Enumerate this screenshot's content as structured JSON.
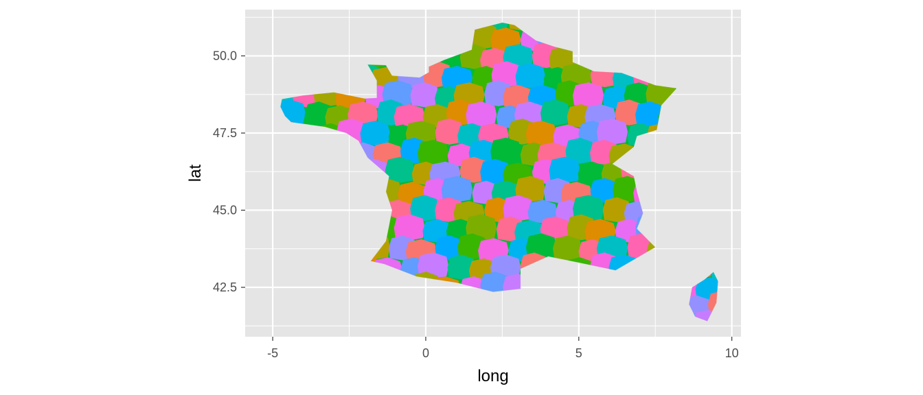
{
  "chart_data": {
    "type": "map",
    "xlabel": "long",
    "ylabel": "lat",
    "xlim": [
      -5.9,
      10.3
    ],
    "ylim": [
      40.9,
      51.5
    ],
    "x_ticks": [
      -5,
      0,
      5,
      10
    ],
    "x_tick_labels": [
      "-5",
      "0",
      "5",
      "10"
    ],
    "y_ticks": [
      42.5,
      45.0,
      47.5,
      50.0
    ],
    "y_tick_labels": [
      "42.5",
      "45.0",
      "47.5",
      "50.0"
    ],
    "grid": true,
    "legend": "none",
    "panel_background": "#e5e5e5",
    "grid_color": "#ffffff",
    "fill_palette": [
      "#00ba38",
      "#f8766d",
      "#619cff",
      "#00bfc4",
      "#f564e3",
      "#b79f00",
      "#de8c00",
      "#7cae00",
      "#00a9ff",
      "#c77cff",
      "#ff64b0",
      "#00b4f0",
      "#9590ff",
      "#e76bf3",
      "#ff6c91",
      "#39b600",
      "#00c08b",
      "#a3a500"
    ],
    "outline": [
      [
        -4.7,
        48.6
      ],
      [
        -4.0,
        48.72
      ],
      [
        -3.0,
        48.82
      ],
      [
        -2.0,
        48.62
      ],
      [
        -1.6,
        48.64
      ],
      [
        -1.6,
        49.2
      ],
      [
        -1.9,
        49.72
      ],
      [
        -1.3,
        49.7
      ],
      [
        -1.1,
        49.36
      ],
      [
        -0.2,
        49.3
      ],
      [
        0.1,
        49.47
      ],
      [
        0.1,
        49.65
      ],
      [
        0.6,
        49.87
      ],
      [
        1.5,
        50.2
      ],
      [
        1.6,
        50.85
      ],
      [
        2.5,
        51.08
      ],
      [
        2.9,
        51.0
      ],
      [
        3.6,
        50.5
      ],
      [
        4.2,
        50.3
      ],
      [
        4.8,
        50.15
      ],
      [
        4.8,
        49.8
      ],
      [
        5.5,
        49.5
      ],
      [
        6.4,
        49.45
      ],
      [
        7.5,
        49.05
      ],
      [
        8.2,
        48.95
      ],
      [
        7.7,
        48.4
      ],
      [
        7.55,
        47.6
      ],
      [
        6.9,
        47.4
      ],
      [
        6.8,
        47.05
      ],
      [
        6.1,
        46.5
      ],
      [
        6.8,
        46.1
      ],
      [
        6.9,
        45.6
      ],
      [
        7.1,
        44.9
      ],
      [
        6.9,
        44.4
      ],
      [
        7.5,
        43.8
      ],
      [
        6.2,
        43.05
      ],
      [
        5.0,
        43.3
      ],
      [
        4.0,
        43.5
      ],
      [
        3.1,
        43.1
      ],
      [
        3.1,
        42.45
      ],
      [
        2.2,
        42.35
      ],
      [
        1.0,
        42.65
      ],
      [
        -0.3,
        42.85
      ],
      [
        -1.35,
        43.25
      ],
      [
        -1.8,
        43.35
      ],
      [
        -1.3,
        44.0
      ],
      [
        -1.1,
        45.0
      ],
      [
        -1.3,
        45.6
      ],
      [
        -1.2,
        46.1
      ],
      [
        -1.9,
        46.7
      ],
      [
        -2.2,
        47.25
      ],
      [
        -2.6,
        47.5
      ],
      [
        -3.3,
        47.7
      ],
      [
        -4.4,
        47.85
      ],
      [
        -4.6,
        48.05
      ],
      [
        -4.75,
        48.35
      ]
    ],
    "outline_corsica": [
      [
        9.4,
        43.0
      ],
      [
        9.55,
        42.7
      ],
      [
        9.5,
        42.0
      ],
      [
        9.2,
        41.4
      ],
      [
        8.8,
        41.55
      ],
      [
        8.6,
        41.95
      ],
      [
        8.7,
        42.5
      ],
      [
        9.1,
        42.75
      ]
    ]
  }
}
